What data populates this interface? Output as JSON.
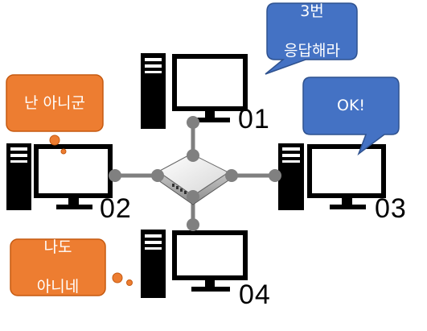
{
  "computers": [
    {
      "id": "pc-01",
      "label": "01"
    },
    {
      "id": "pc-02",
      "label": "02"
    },
    {
      "id": "pc-03",
      "label": "03"
    },
    {
      "id": "pc-04",
      "label": "04"
    }
  ],
  "bubbles": {
    "pc01": {
      "lines": [
        "3번",
        "응답해라"
      ],
      "color": "#4472C4"
    },
    "pc02": {
      "lines": [
        "난 아니군"
      ],
      "color": "#ED7D31"
    },
    "pc03": {
      "lines": [
        "OK!"
      ],
      "color": "#4472C4"
    },
    "pc04": {
      "lines": [
        "나도",
        "아니네"
      ],
      "color": "#ED7D31"
    }
  },
  "colors": {
    "link": "#7F7F7F",
    "node": "#808080",
    "hub": "#E6E6E6",
    "computer": "#000000"
  }
}
